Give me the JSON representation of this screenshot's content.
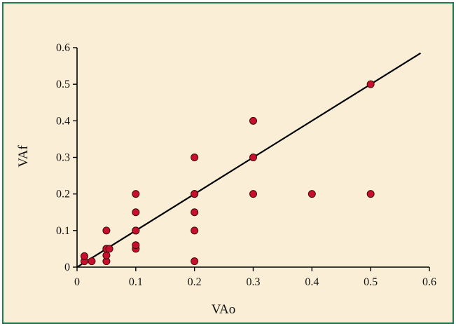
{
  "colors": {
    "background": "#fbeed6",
    "border": "#1f7a4f",
    "point_fill": "#c8102e",
    "point_stroke": "#3a0a0a",
    "line": "#000000"
  },
  "chart_data": {
    "type": "scatter",
    "title": "",
    "xlabel": "VAo",
    "ylabel": "VAf",
    "xlim": [
      0,
      0.6
    ],
    "ylim": [
      0,
      0.6
    ],
    "xticks": [
      "0",
      "0.1",
      "0.2",
      "0.3",
      "0.4",
      "0.5",
      "0.6"
    ],
    "yticks": [
      "0",
      "0.1",
      "0.2",
      "0.3",
      "0.4",
      "0.5",
      "0.6"
    ],
    "grid": false,
    "series": [
      {
        "x": [
          0.0125,
          0.0125,
          0.025,
          0.05,
          0.05,
          0.05,
          0.05,
          0.05,
          0.055,
          0.1,
          0.1,
          0.1,
          0.1,
          0.1,
          0.1,
          0.2,
          0.2,
          0.2,
          0.2,
          0.2,
          0.2,
          0.3,
          0.3,
          0.3,
          0.4,
          0.5,
          0.5
        ],
        "y": [
          0.016,
          0.03,
          0.016,
          0.016,
          0.032,
          0.05,
          0.05,
          0.1,
          0.05,
          0.05,
          0.06,
          0.1,
          0.1,
          0.15,
          0.2,
          0.016,
          0.1,
          0.15,
          0.2,
          0.3,
          0.2,
          0.2,
          0.3,
          0.4,
          0.2,
          0.2,
          0.5
        ]
      }
    ],
    "reference_line": {
      "x": [
        0,
        0.585
      ],
      "y": [
        0,
        0.585
      ]
    }
  }
}
